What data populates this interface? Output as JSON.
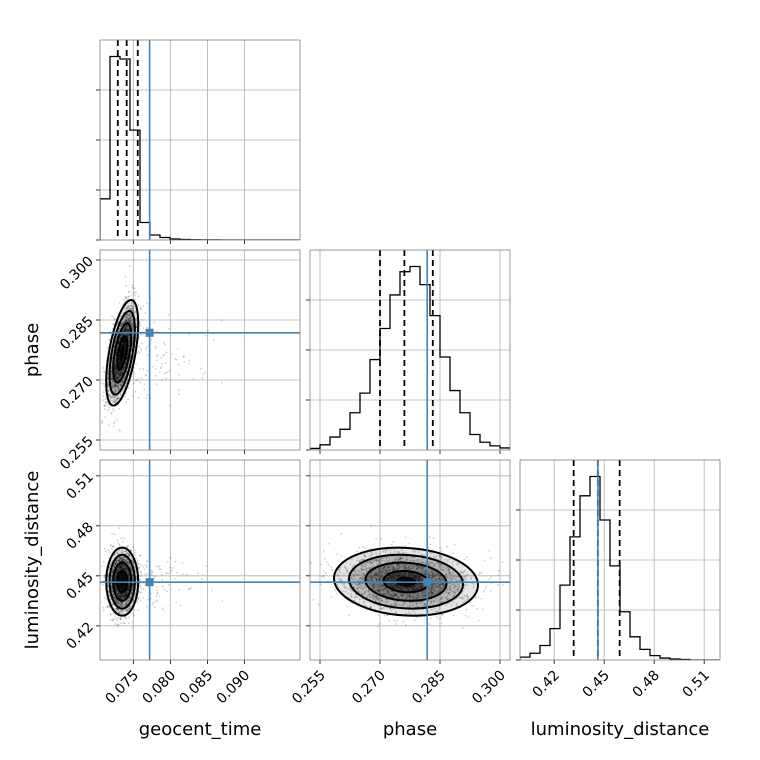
{
  "chart_data": {
    "type": "corner",
    "parameters": [
      "geocent_time",
      "phase",
      "luminosity_distance"
    ],
    "truth_color": "#4682b4",
    "truths": {
      "geocent_time": 0.0772,
      "phase": 0.2818,
      "luminosity_distance": 0.4462
    },
    "ranges": {
      "geocent_time": [
        0.0705,
        0.0975
      ],
      "phase": [
        0.2525,
        0.3025
      ],
      "luminosity_distance": [
        0.3995,
        0.5195
      ]
    },
    "ticks": {
      "geocent_time": {
        "values": [
          0.075,
          0.08,
          0.085,
          0.09
        ],
        "labels": [
          "0.075",
          "0.080",
          "0.085",
          "0.090"
        ]
      },
      "phase": {
        "values": [
          0.255,
          0.27,
          0.285,
          0.3
        ],
        "labels": [
          "0.255",
          "0.270",
          "0.285",
          "0.300"
        ]
      },
      "luminosity_distance": {
        "values": [
          0.42,
          0.45,
          0.48,
          0.51
        ],
        "labels": [
          "0.42",
          "0.45",
          "0.48",
          "0.51"
        ]
      }
    },
    "histograms": {
      "geocent_time": {
        "edges": [
          0.0705,
          0.07185,
          0.0732,
          0.07455,
          0.0759,
          0.07725,
          0.0786,
          0.07995,
          0.0813,
          0.08265,
          0.084,
          0.08535,
          0.0867,
          0.08805,
          0.0894,
          0.09075,
          0.0921,
          0.09345,
          0.0948,
          0.09615,
          0.0975
        ],
        "counts": [
          330,
          1470,
          1450,
          880,
          140,
          40,
          20,
          8,
          4,
          2,
          1,
          1,
          0,
          0,
          0,
          0,
          0,
          0,
          0,
          0
        ],
        "quantiles": [
          0.0729,
          0.0741,
          0.0756
        ]
      },
      "phase": {
        "edges": [
          0.2525,
          0.255,
          0.2575,
          0.26,
          0.2625,
          0.265,
          0.2675,
          0.27,
          0.2725,
          0.275,
          0.2775,
          0.28,
          0.2825,
          0.285,
          0.2875,
          0.29,
          0.2925,
          0.295,
          0.2975,
          0.3,
          0.3025
        ],
        "counts": [
          3,
          10,
          25,
          40,
          72,
          110,
          175,
          235,
          300,
          345,
          355,
          320,
          260,
          180,
          115,
          72,
          30,
          15,
          8,
          4
        ],
        "quantiles": [
          0.27,
          0.2761,
          0.2832
        ]
      },
      "luminosity_distance": {
        "edges": [
          0.3995,
          0.4055,
          0.4115,
          0.4175,
          0.4235,
          0.4295,
          0.4355,
          0.4415,
          0.4475,
          0.4535,
          0.4595,
          0.4655,
          0.4715,
          0.4775,
          0.4835,
          0.4895,
          0.4955,
          0.5015,
          0.5075,
          0.5135,
          0.5195
        ],
        "counts": [
          6,
          14,
          30,
          65,
          155,
          255,
          340,
          380,
          290,
          195,
          100,
          48,
          22,
          9,
          4,
          2,
          1,
          0,
          0,
          0
        ],
        "quantiles": [
          0.4317,
          0.4462,
          0.4593
        ]
      }
    },
    "joint": {
      "phase|geocent_time": {
        "mean": [
          0.0735,
          0.2768
        ],
        "std": [
          0.0009,
          0.0055
        ],
        "corr": 0.55
      },
      "luminosity_distance|geocent_time": {
        "mean": [
          0.0735,
          0.4465
        ],
        "std": [
          0.0009,
          0.0085
        ],
        "corr": 0.0
      },
      "luminosity_distance|phase": {
        "mean": [
          0.2765,
          0.4465
        ],
        "std": [
          0.0075,
          0.0085
        ],
        "corr": -0.1
      }
    }
  }
}
